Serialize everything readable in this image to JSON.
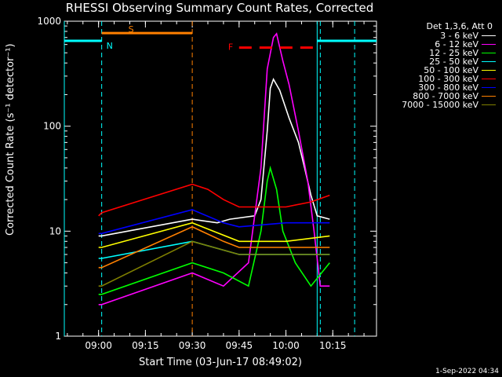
{
  "chart_data": {
    "type": "line",
    "title": "RHESSI Observing Summary Count Rates, Corrected",
    "xlabel": "Start Time (03-Jun-17 08:49:02)",
    "ylabel": "Corrected Count Rate (s⁻¹ detector⁻¹)",
    "y_scale": "log",
    "ylim": [
      1,
      1000
    ],
    "xlim": [
      "08:49:02",
      "10:29:00"
    ],
    "x_ticks": [
      "09:00",
      "09:15",
      "09:30",
      "09:45",
      "10:00",
      "10:15"
    ],
    "y_ticks": [
      "1",
      "10",
      "100",
      "1000"
    ],
    "legend_header": "Det 1,3,6, Att 0",
    "legend_position": "right",
    "series": [
      {
        "name": "3 - 6 keV",
        "color": "#ffffff",
        "points": [
          [
            "09:00",
            9
          ],
          [
            "09:01",
            9
          ],
          [
            "09:30",
            13
          ],
          [
            "09:38",
            12
          ],
          [
            "09:42",
            13
          ],
          [
            "09:50",
            14
          ],
          [
            "09:52",
            20
          ],
          [
            "09:54",
            90
          ],
          [
            "09:55",
            230
          ],
          [
            "09:56",
            280
          ],
          [
            "09:58",
            220
          ],
          [
            "10:01",
            120
          ],
          [
            "10:04",
            70
          ],
          [
            "10:06",
            40
          ],
          [
            "10:08",
            22
          ],
          [
            "10:10",
            14
          ],
          [
            "10:14",
            13
          ]
        ]
      },
      {
        "name": "6 - 12 keV",
        "color": "#ff00ff",
        "points": [
          [
            "09:00",
            2
          ],
          [
            "09:01",
            2
          ],
          [
            "09:30",
            4
          ],
          [
            "09:40",
            3
          ],
          [
            "09:48",
            5
          ],
          [
            "09:52",
            40
          ],
          [
            "09:54",
            350
          ],
          [
            "09:56",
            700
          ],
          [
            "09:57",
            760
          ],
          [
            "09:59",
            420
          ],
          [
            "10:01",
            250
          ],
          [
            "10:04",
            90
          ],
          [
            "10:07",
            30
          ],
          [
            "10:09",
            10
          ],
          [
            "10:11",
            3
          ],
          [
            "10:14",
            3
          ]
        ]
      },
      {
        "name": "12 - 25 keV",
        "color": "#00ff00",
        "points": [
          [
            "09:00",
            2.5
          ],
          [
            "09:01",
            2.5
          ],
          [
            "09:30",
            5
          ],
          [
            "09:40",
            4
          ],
          [
            "09:48",
            3
          ],
          [
            "09:52",
            10
          ],
          [
            "09:54",
            30
          ],
          [
            "09:55",
            40
          ],
          [
            "09:57",
            25
          ],
          [
            "09:59",
            10
          ],
          [
            "10:03",
            5
          ],
          [
            "10:08",
            3
          ],
          [
            "10:14",
            5
          ]
        ]
      },
      {
        "name": "25 - 50 keV",
        "color": "#00ffff",
        "points": [
          [
            "09:00",
            5.5
          ],
          [
            "09:01",
            5.5
          ],
          [
            "09:30",
            8
          ],
          [
            "09:45",
            6
          ],
          [
            "10:00",
            6
          ],
          [
            "10:14",
            6
          ]
        ]
      },
      {
        "name": "50 - 100 keV",
        "color": "#ffff00",
        "points": [
          [
            "09:00",
            7
          ],
          [
            "09:01",
            7
          ],
          [
            "09:30",
            12
          ],
          [
            "09:45",
            8
          ],
          [
            "10:00",
            8
          ],
          [
            "10:14",
            9
          ]
        ]
      },
      {
        "name": "100 - 300 keV",
        "color": "#ff0000",
        "points": [
          [
            "09:00",
            14
          ],
          [
            "09:01",
            15
          ],
          [
            "09:30",
            28
          ],
          [
            "09:35",
            25
          ],
          [
            "09:40",
            20
          ],
          [
            "09:45",
            17
          ],
          [
            "10:00",
            17
          ],
          [
            "10:08",
            19
          ],
          [
            "10:14",
            22
          ]
        ]
      },
      {
        "name": "300 - 800 keV",
        "color": "#0000ff",
        "points": [
          [
            "09:00",
            9.5
          ],
          [
            "09:01",
            9.5
          ],
          [
            "09:30",
            16
          ],
          [
            "09:40",
            12
          ],
          [
            "09:45",
            11
          ],
          [
            "10:00",
            12
          ],
          [
            "10:14",
            12
          ]
        ]
      },
      {
        "name": "800 - 7000 keV",
        "color": "#ff8000",
        "points": [
          [
            "09:00",
            4.5
          ],
          [
            "09:01",
            4.5
          ],
          [
            "09:30",
            11
          ],
          [
            "09:40",
            8
          ],
          [
            "09:45",
            7
          ],
          [
            "10:00",
            7
          ],
          [
            "10:14",
            7
          ]
        ]
      },
      {
        "name": "7000 - 15000 keV",
        "color": "#808000",
        "points": [
          [
            "09:00",
            3
          ],
          [
            "09:01",
            3
          ],
          [
            "09:30",
            8
          ],
          [
            "09:45",
            6
          ],
          [
            "10:00",
            6
          ],
          [
            "10:14",
            6
          ]
        ]
      }
    ],
    "annotations": [
      {
        "label": "S",
        "color": "#ff8000",
        "y": 770,
        "span": [
          "09:01",
          "09:30"
        ],
        "style": "solid"
      },
      {
        "label": "N",
        "color": "#00ffff",
        "y": 650,
        "span": [
          "08:49:02",
          "09:01"
        ],
        "style": "solid"
      },
      {
        "label": "",
        "color": "#00ffff",
        "y": 650,
        "span": [
          "10:10",
          "10:29"
        ],
        "style": "solid"
      },
      {
        "label": "F",
        "color": "#ff0000",
        "y": 560,
        "span": [
          "09:45",
          "10:09"
        ],
        "style": "dashed"
      }
    ],
    "vlines": [
      {
        "x": "08:49:02",
        "color": "#00ffff",
        "style": "solid"
      },
      {
        "x": "09:01",
        "color": "#00ffff",
        "style": "dashed"
      },
      {
        "x": "09:30",
        "color": "#ff8000",
        "style": "dashed"
      },
      {
        "x": "10:10",
        "color": "#00ffff",
        "style": "solid"
      },
      {
        "x": "10:11",
        "color": "#00ffff",
        "style": "dashed"
      },
      {
        "x": "10:22",
        "color": "#00ffff",
        "style": "dashed"
      }
    ]
  },
  "timestamp": "1-Sep-2022 04:34"
}
